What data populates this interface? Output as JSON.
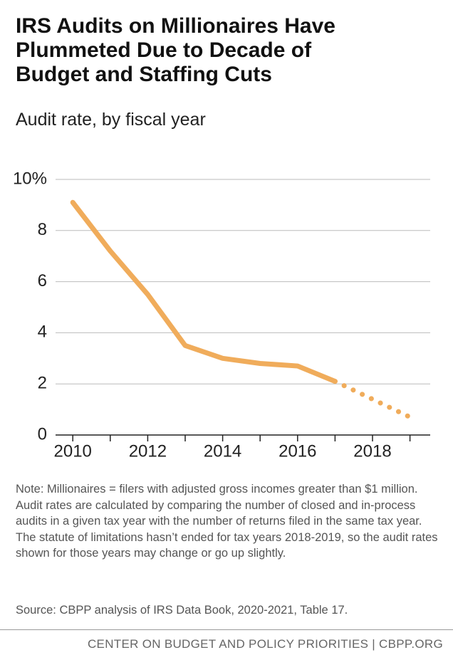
{
  "chart_data": {
    "type": "line",
    "title_lines": [
      "IRS Audits on Millionaires Have",
      "Plummeted Due to Decade of",
      "Budget and Staffing Cuts"
    ],
    "subtitle": "Audit rate, by fiscal year",
    "x": [
      2010,
      2011,
      2012,
      2013,
      2014,
      2015,
      2016,
      2017,
      2018,
      2019
    ],
    "values": [
      9.1,
      7.2,
      5.5,
      3.5,
      3.0,
      2.8,
      2.7,
      2.1,
      1.4,
      0.7
    ],
    "color": "#f0ac5b",
    "dotted_after": 2017,
    "xlim": [
      2009.54,
      2019.54
    ],
    "xticks": [
      2010,
      2012,
      2014,
      2016,
      2018
    ],
    "xminor_ticks": [
      2010,
      2011,
      2012,
      2013,
      2014,
      2015,
      2016,
      2017,
      2018,
      2019
    ],
    "ylim": [
      0,
      10
    ],
    "yticks": [
      0,
      2,
      4,
      6,
      8,
      {
        "value": 10,
        "label": "10%"
      }
    ],
    "grid": true,
    "note": "Note: Millionaires = filers with adjusted gross incomes greater than $1 million. Audit rates are calculated by comparing the number of closed and in-process audits in a given tax year with the number of returns filed in the same tax year. The statute of limitations hasn’t ended for tax years 2018-2019, so the audit rates shown for those years may change or go up slightly.",
    "source": "Source: CBPP analysis of IRS Data Book, 2020-2021, Table 17.",
    "footer": "CENTER ON BUDGET AND POLICY PRIORITIES | CBPP.ORG"
  }
}
